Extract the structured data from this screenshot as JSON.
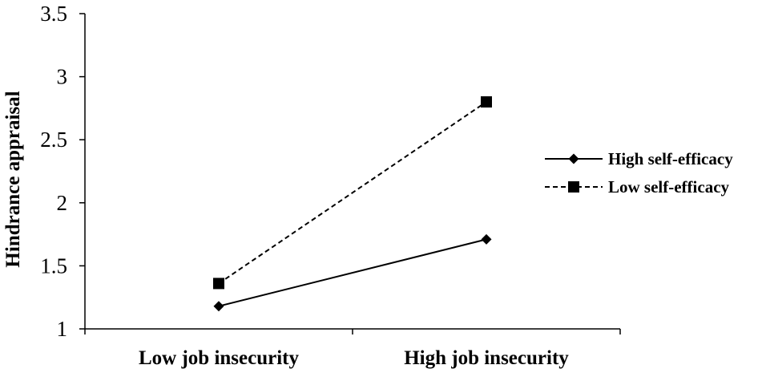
{
  "chart_data": {
    "type": "line",
    "categories": [
      "Low job insecurity",
      "High job insecurity"
    ],
    "series": [
      {
        "name": "High self-efficacy",
        "values": [
          1.18,
          1.71
        ],
        "marker": "diamond",
        "dash": "solid",
        "color": "#000000"
      },
      {
        "name": "Low self-efficacy",
        "values": [
          1.36,
          2.8
        ],
        "marker": "square",
        "dash": "dashed",
        "color": "#000000"
      }
    ],
    "ylabel": "Hindrance appraisal",
    "xlabel": "",
    "ylim": [
      1,
      3.5
    ],
    "yticks": [
      1,
      1.5,
      2,
      2.5,
      3,
      3.5
    ],
    "ytick_labels": [
      "1",
      "1.5",
      "2",
      "2.5",
      "3",
      "3.5"
    ],
    "grid": false,
    "legend": "right"
  }
}
